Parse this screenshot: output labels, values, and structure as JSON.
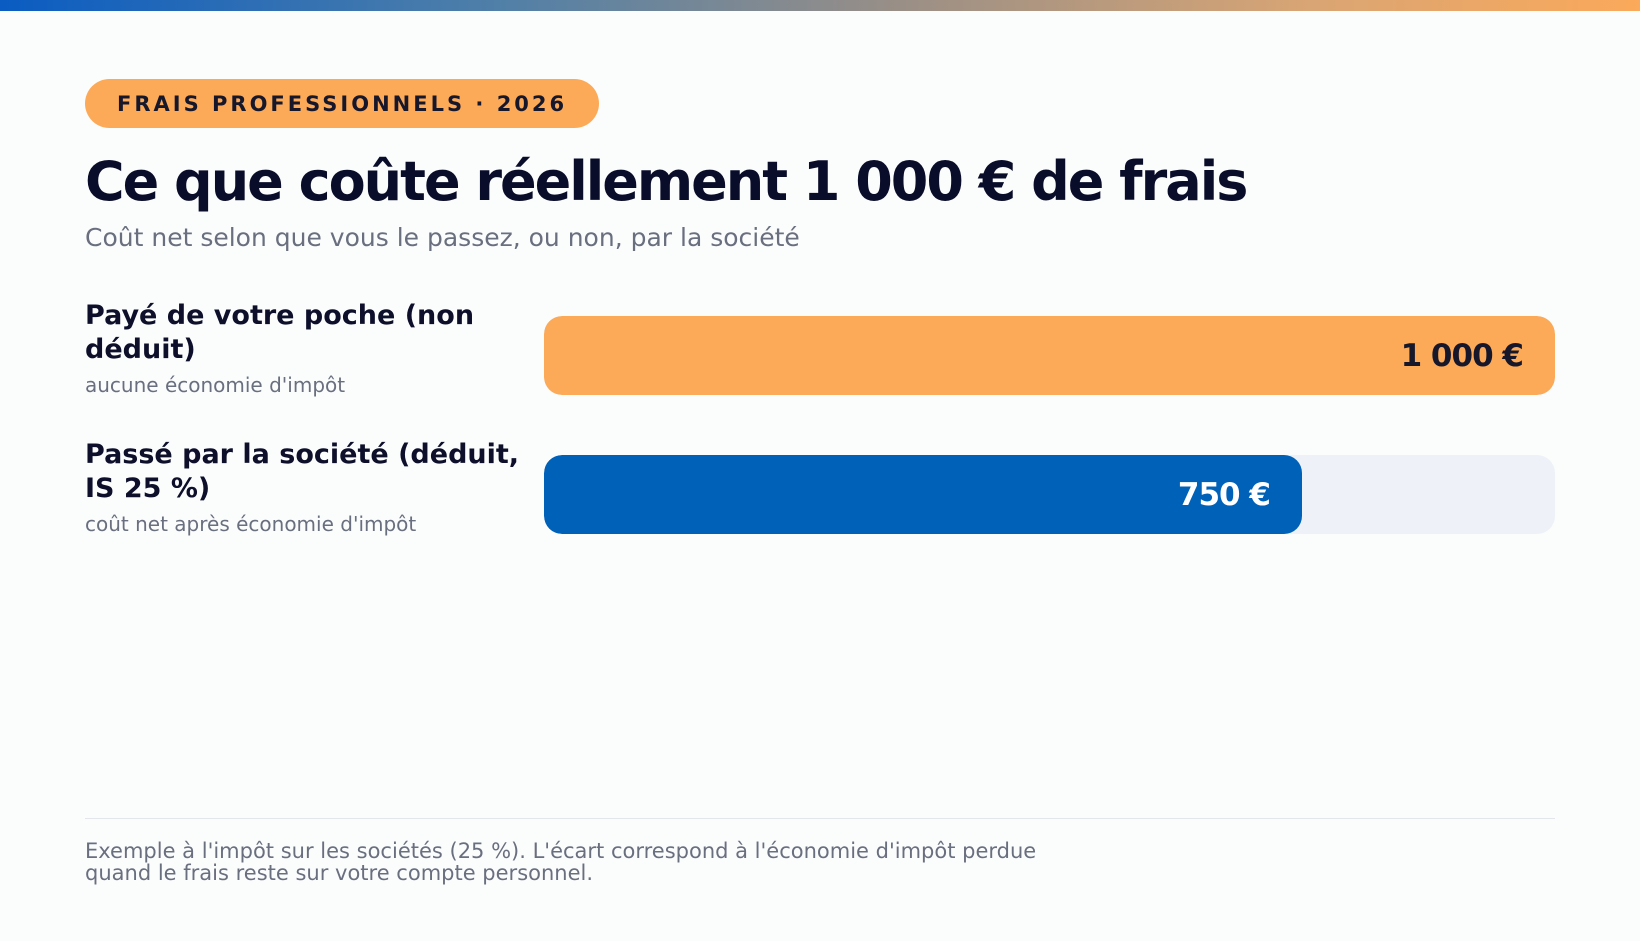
{
  "badge": "FRAIS PROFESSIONNELS · 2026",
  "title": "Ce que coûte réellement 1 000 € de frais",
  "subtitle": "Coût net selon que vous le passez, ou non, par la société",
  "colors": {
    "accent_orange": "#fca958",
    "accent_blue": "#0061b8",
    "track": "#eef1f7",
    "text_dark": "#0d0f2b",
    "text_muted": "#6a6f7f"
  },
  "chart_data": {
    "type": "bar",
    "orientation": "horizontal",
    "xlim": [
      0,
      1000
    ],
    "unit": "€",
    "grid": false,
    "bars": [
      {
        "label": "Payé de votre poche (non déduit)",
        "note": "aucune économie d'impôt",
        "value": 1000,
        "value_label": "1 000 €",
        "color": "#fca958",
        "text_color": "#16172b"
      },
      {
        "label": "Passé par la société (déduit, IS 25 %)",
        "note": "coût net après économie d'impôt",
        "value": 750,
        "value_label": "750 €",
        "color": "#0061b8",
        "text_color": "#ffffff"
      }
    ]
  },
  "footnote": "Exemple à l'impôt sur les sociétés (25 %). L'écart correspond à l'économie d'impôt perdue quand le frais reste sur votre compte personnel."
}
